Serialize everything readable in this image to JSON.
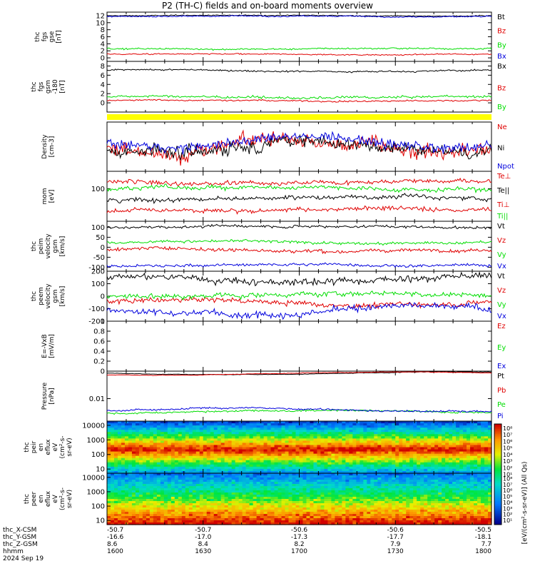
{
  "title": "P2 (TH-C) fields and on-board moments overview",
  "colors": {
    "black": "#000000",
    "red": "#e00000",
    "green": "#00dd00",
    "blue": "#0000dd",
    "yellow": "#ffff00"
  },
  "chart_data": [
    {
      "type": "line",
      "id": "fgs-gse",
      "ylabel": [
        "thc",
        "fgs",
        "gse",
        "[nT]"
      ],
      "ylim": [
        -1,
        13
      ],
      "yticks": [
        0,
        2,
        4,
        6,
        8,
        10,
        12
      ],
      "series": [
        {
          "name": "Bt",
          "color": "#000000",
          "level": 12.0,
          "noise": 0.15
        },
        {
          "name": "Bz",
          "color": "#e00000",
          "level": 1.0,
          "noise": 0.2
        },
        {
          "name": "By",
          "color": "#00dd00",
          "level": 2.6,
          "noise": 0.25
        },
        {
          "name": "Bx",
          "color": "#0000dd",
          "level": 11.8,
          "noise": 0.2
        }
      ]
    },
    {
      "type": "line",
      "id": "fgs-gsm",
      "ylabel": [
        "thc",
        "fgs",
        "gsm",
        "-180",
        "[nT]"
      ],
      "ylim": [
        -2,
        9
      ],
      "yticks": [
        0,
        2,
        4,
        6,
        8
      ],
      "series": [
        {
          "name": "Bx",
          "color": "#000000",
          "level": 7.0,
          "noise": 0.2
        },
        {
          "name": "Bz",
          "color": "#e00000",
          "level": 0.5,
          "noise": 0.2
        },
        {
          "name": "By",
          "color": "#00dd00",
          "level": 1.2,
          "noise": 0.3
        }
      ]
    },
    {
      "type": "line",
      "id": "density",
      "ylabel": [
        "Density",
        "[cm-3]"
      ],
      "log": true,
      "series": [
        {
          "name": "Ne",
          "color": "#e00000"
        },
        {
          "name": "Ni",
          "color": "#000000"
        },
        {
          "name": "Npot",
          "color": "#0000dd"
        }
      ]
    },
    {
      "type": "line",
      "id": "temperature",
      "ylabel": [
        "mom",
        "[eV]"
      ],
      "log": true,
      "yticks": [
        100
      ],
      "series": [
        {
          "name": "Te⊥",
          "color": "#e00000"
        },
        {
          "name": "Te||",
          "color": "#000000"
        },
        {
          "name": "Ti⊥",
          "color": "#e00000"
        },
        {
          "name": "Ti||",
          "color": "#00dd00"
        }
      ]
    },
    {
      "type": "line",
      "id": "velocity-peim",
      "ylabel": [
        "thc",
        "peim",
        "velocity",
        "gsm",
        "[km/s]"
      ],
      "ylim": [
        -120,
        130
      ],
      "yticks": [
        100,
        50,
        0,
        -50,
        -100
      ],
      "series": [
        {
          "name": "Vt",
          "color": "#000000",
          "level": 105,
          "noise": 8
        },
        {
          "name": "Vz",
          "color": "#e00000",
          "level": -12,
          "noise": 10
        },
        {
          "name": "Vy",
          "color": "#00dd00",
          "level": 25,
          "noise": 8
        },
        {
          "name": "Vx",
          "color": "#0000dd",
          "level": -90,
          "noise": 8
        }
      ]
    },
    {
      "type": "line",
      "id": "velocity-peem",
      "ylabel": [
        "thc",
        "peem",
        "velocity",
        "gsm",
        "[km/s]"
      ],
      "ylim": [
        -200,
        200
      ],
      "yticks": [
        200,
        100,
        0,
        -100,
        -200
      ],
      "series": [
        {
          "name": "Vt",
          "color": "#000000",
          "level": 140,
          "noise": 30
        },
        {
          "name": "Vz",
          "color": "#e00000",
          "level": -50,
          "noise": 25
        },
        {
          "name": "Vy",
          "color": "#00dd00",
          "level": 10,
          "noise": 25
        },
        {
          "name": "Vx",
          "color": "#0000dd",
          "level": -110,
          "noise": 30
        }
      ]
    },
    {
      "type": "line",
      "id": "efield",
      "ylabel": [
        "E=-VxB",
        "[mV/m]"
      ],
      "ylim": [
        0,
        1
      ],
      "yticks": [
        1.0,
        0.8,
        0.6,
        0.4,
        0.2,
        0.0
      ],
      "series": [
        {
          "name": "Ez",
          "color": "#e00000"
        },
        {
          "name": "Ey",
          "color": "#00dd00"
        },
        {
          "name": "Ex",
          "color": "#0000dd"
        }
      ]
    },
    {
      "type": "line",
      "id": "pressure",
      "ylabel": [
        "Pressure",
        "[nPa]"
      ],
      "log": true,
      "yticks": [
        0.01
      ],
      "series": [
        {
          "name": "Pt",
          "color": "#000000"
        },
        {
          "name": "Pb",
          "color": "#e00000"
        },
        {
          "name": "Pe",
          "color": "#00dd00"
        },
        {
          "name": "Pi",
          "color": "#0000dd"
        }
      ]
    },
    {
      "type": "heatmap",
      "id": "peir",
      "ylabel": [
        "thc",
        "peir",
        "en",
        "eflux",
        "eV",
        "(cm²-s-",
        "sr-eV)"
      ],
      "log": true,
      "yticks": [
        10000,
        1000,
        100,
        10
      ]
    },
    {
      "type": "heatmap",
      "id": "peer",
      "ylabel": [
        "thc",
        "peer",
        "en",
        "eflux",
        "eV",
        "(cm²-s-",
        "sr-eV)"
      ],
      "log": true,
      "yticks": [
        10000,
        1000,
        100,
        10
      ]
    }
  ],
  "colorbar": {
    "label": "[eV/(cm²-s-sr-eV)] (All Qs)",
    "ticks_upper": [
      "10⁸",
      "10⁷",
      "10⁶",
      "10⁵",
      "10⁴",
      "10³",
      "10²",
      "10¹"
    ],
    "ticks_lower": [
      "10⁸",
      "10⁷",
      "10⁶",
      "10⁵",
      "10⁴",
      "10³",
      "10²",
      "10¹"
    ]
  },
  "xaxis": {
    "row_labels": [
      "thc_X-CSM",
      "thc_Y-GSM",
      "thc_Z-GSM",
      "hhmm",
      "2024 Sep 19"
    ],
    "ticks": [
      {
        "t": 0.0,
        "values": [
          "-50.7",
          "-16.6",
          "8.6",
          "1600"
        ]
      },
      {
        "t": 0.25,
        "values": [
          "-50.7",
          "-17.0",
          "8.4",
          "1630"
        ]
      },
      {
        "t": 0.5,
        "values": [
          "-50.6",
          "-17.3",
          "8.2",
          "1700"
        ]
      },
      {
        "t": 0.75,
        "values": [
          "-50.6",
          "-17.7",
          "7.9",
          "1730"
        ]
      },
      {
        "t": 1.0,
        "values": [
          "-50.5",
          "-18.1",
          "7.7",
          "1800"
        ]
      }
    ]
  }
}
